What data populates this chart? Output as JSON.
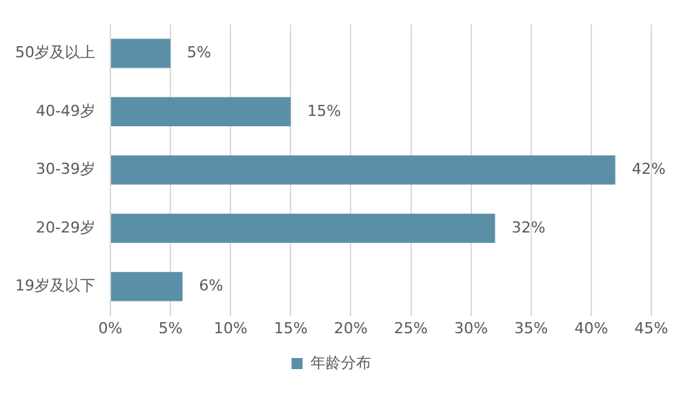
{
  "chart_data": {
    "type": "bar",
    "orientation": "horizontal",
    "categories": [
      "50岁及以上",
      "40-49岁",
      "30-39岁",
      "20-29岁",
      "19岁及以下"
    ],
    "series": [
      {
        "name": "年龄分布",
        "color": "#5b8fa8",
        "values": [
          5,
          15,
          42,
          32,
          6
        ]
      }
    ],
    "value_labels": [
      "5%",
      "15%",
      "42%",
      "32%",
      "6%"
    ],
    "xlim": [
      0,
      45
    ],
    "xticks": [
      {
        "value": 0,
        "label": "0%"
      },
      {
        "value": 5,
        "label": "5%"
      },
      {
        "value": 10,
        "label": "10%"
      },
      {
        "value": 15,
        "label": "15%"
      },
      {
        "value": 20,
        "label": "20%"
      },
      {
        "value": 25,
        "label": "25%"
      },
      {
        "value": 30,
        "label": "30%"
      },
      {
        "value": 35,
        "label": "35%"
      },
      {
        "value": 40,
        "label": "40%"
      },
      {
        "value": 45,
        "label": "45%"
      }
    ],
    "grid": "x",
    "legend": "bottom"
  }
}
